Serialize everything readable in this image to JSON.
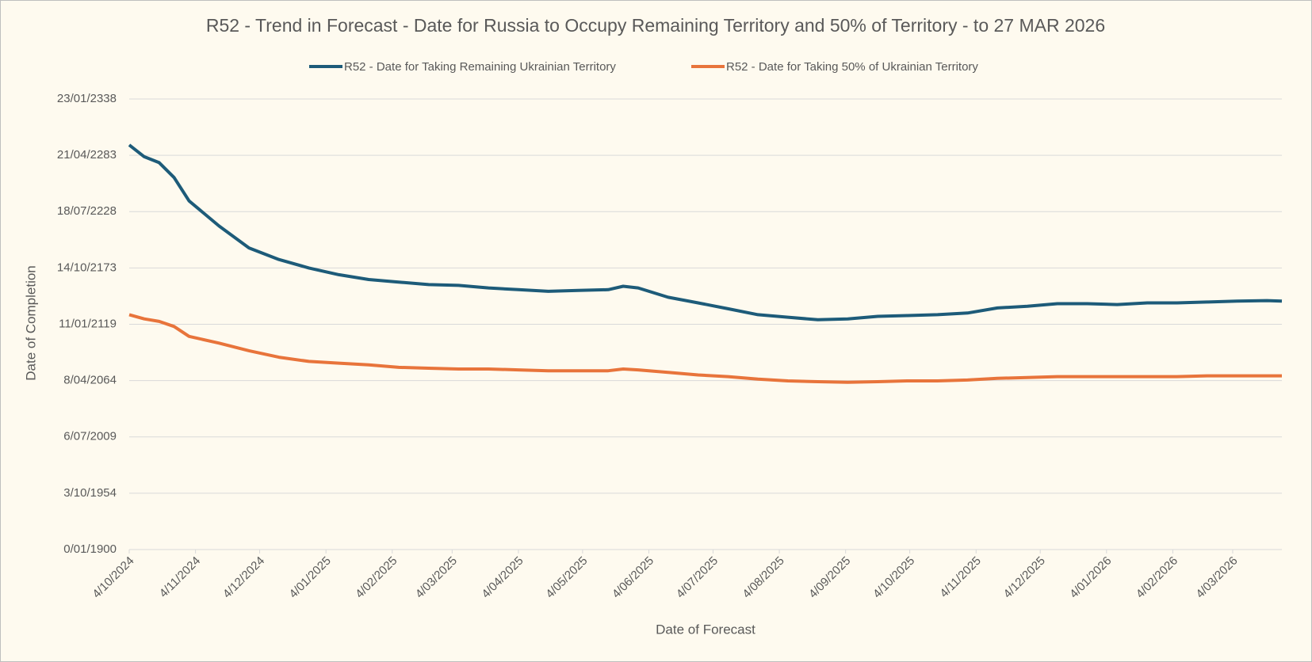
{
  "chart_data": {
    "type": "line",
    "title": "R52 - Trend in Forecast - Date for Russia to Occupy Remaining Territory and 50% of Territory - to 27 MAR 2026",
    "x_label": "Date of Forecast",
    "y_label": "Date of Completion",
    "x": [
      "2024-10-04",
      "2024-10-11",
      "2024-10-18",
      "2024-10-25",
      "2024-11-01",
      "2024-11-15",
      "2024-11-29",
      "2024-12-13",
      "2024-12-27",
      "2025-01-10",
      "2025-01-24",
      "2025-02-07",
      "2025-02-21",
      "2025-03-07",
      "2025-03-21",
      "2025-04-04",
      "2025-04-18",
      "2025-05-02",
      "2025-05-16",
      "2025-05-23",
      "2025-05-30",
      "2025-06-13",
      "2025-06-27",
      "2025-07-11",
      "2025-07-25",
      "2025-08-08",
      "2025-08-22",
      "2025-09-05",
      "2025-09-19",
      "2025-10-03",
      "2025-10-17",
      "2025-10-31",
      "2025-11-14",
      "2025-11-28",
      "2025-12-12",
      "2025-12-26",
      "2026-01-09",
      "2026-01-23",
      "2026-02-06",
      "2026-02-20",
      "2026-03-06",
      "2026-03-20",
      "2026-03-27"
    ],
    "series": [
      {
        "name": "R52 - Date for Taking Remaining Ukrainian Territory",
        "color": "#1d5b79",
        "values": [
          143650,
          139500,
          137400,
          132100,
          123800,
          114900,
          107100,
          103000,
          100000,
          97600,
          95900,
          95000,
          94100,
          93800,
          92900,
          92300,
          91700,
          92000,
          92300,
          93500,
          92900,
          89600,
          87600,
          85500,
          83400,
          82500,
          81600,
          81900,
          82800,
          83100,
          83400,
          84000,
          85800,
          86400,
          87300,
          87300,
          87000,
          87600,
          87600,
          87900,
          88200,
          88400,
          88200
        ]
      },
      {
        "name": "R52 - Date for Taking  50% of Ukrainian Territory",
        "color": "#e8743b",
        "values": [
          83400,
          81900,
          81000,
          79200,
          75700,
          73300,
          70600,
          68300,
          66800,
          66200,
          65600,
          64700,
          64400,
          64100,
          64100,
          63800,
          63500,
          63500,
          63500,
          64100,
          63800,
          62900,
          62000,
          61400,
          60500,
          59900,
          59600,
          59400,
          59600,
          59900,
          59900,
          60200,
          60800,
          61100,
          61400,
          61400,
          61400,
          61400,
          61400,
          61700,
          61700,
          61700,
          61700
        ]
      }
    ],
    "xlim": [
      "2024-10-04",
      "2026-03-27"
    ],
    "xticks": [
      {
        "value": "2024-10-04",
        "label": "4/10/2024"
      },
      {
        "value": "2024-11-04",
        "label": "4/11/2024"
      },
      {
        "value": "2024-12-04",
        "label": "4/12/2024"
      },
      {
        "value": "2025-01-04",
        "label": "4/01/2025"
      },
      {
        "value": "2025-02-04",
        "label": "4/02/2025"
      },
      {
        "value": "2025-03-04",
        "label": "4/03/2025"
      },
      {
        "value": "2025-04-04",
        "label": "4/04/2025"
      },
      {
        "value": "2025-05-04",
        "label": "4/05/2025"
      },
      {
        "value": "2025-06-04",
        "label": "4/06/2025"
      },
      {
        "value": "2025-07-04",
        "label": "4/07/2025"
      },
      {
        "value": "2025-08-04",
        "label": "4/08/2025"
      },
      {
        "value": "2025-09-04",
        "label": "4/09/2025"
      },
      {
        "value": "2025-10-04",
        "label": "4/10/2025"
      },
      {
        "value": "2025-11-04",
        "label": "4/11/2025"
      },
      {
        "value": "2025-12-04",
        "label": "4/12/2025"
      },
      {
        "value": "2026-01-04",
        "label": "4/01/2026"
      },
      {
        "value": "2026-02-04",
        "label": "4/02/2026"
      },
      {
        "value": "2026-03-04",
        "label": "4/03/2026"
      }
    ],
    "ylim": [
      0,
      160000
    ],
    "yticks": [
      {
        "value": 0,
        "label": "0/01/1900"
      },
      {
        "value": 20000,
        "label": "3/10/1954"
      },
      {
        "value": 40000,
        "label": "6/07/2009"
      },
      {
        "value": 60000,
        "label": "8/04/2064"
      },
      {
        "value": 80000,
        "label": "11/01/2119"
      },
      {
        "value": 100000,
        "label": "14/10/2173"
      },
      {
        "value": 120000,
        "label": "18/07/2228"
      },
      {
        "value": 140000,
        "label": "21/04/2283"
      },
      {
        "value": 160000,
        "label": "23/01/2338"
      }
    ],
    "grid": true,
    "legend": "top"
  }
}
